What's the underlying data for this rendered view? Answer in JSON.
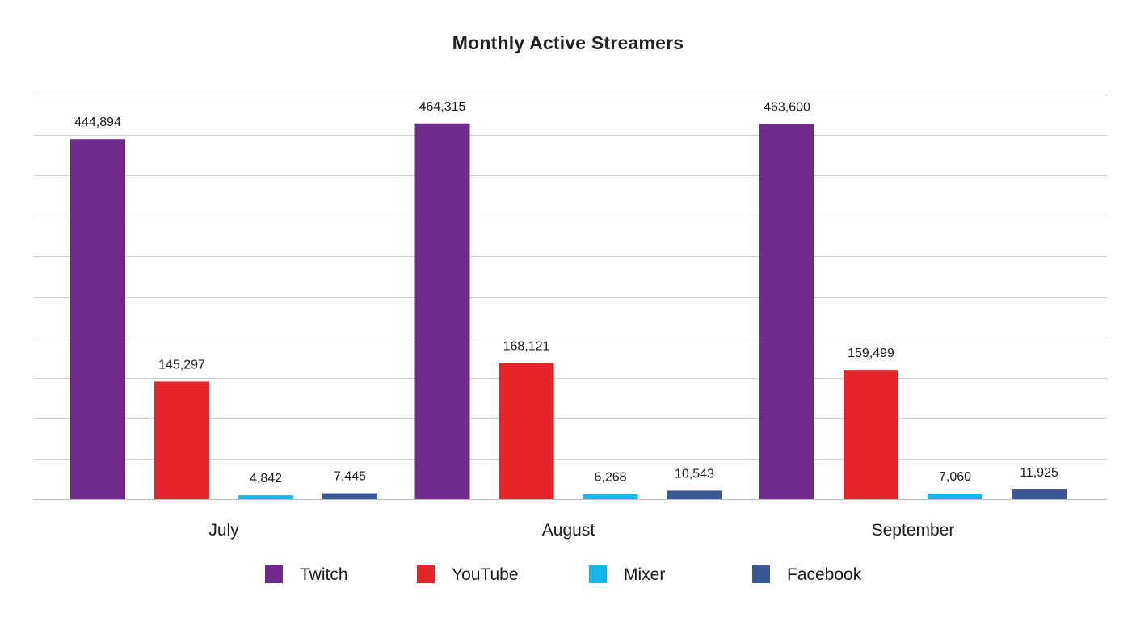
{
  "chart_data": {
    "type": "bar",
    "title": "Monthly Active Streamers",
    "xlabel": "",
    "ylabel": "",
    "categories": [
      "July",
      "August",
      "September"
    ],
    "series": [
      {
        "name": "Twitch",
        "color": "#6f2a8c",
        "values": [
          444894,
          464315,
          463600
        ],
        "labels": [
          "444,894",
          "464,315",
          "463,600"
        ]
      },
      {
        "name": "YouTube",
        "color": "#e52329",
        "values": [
          145297,
          168121,
          159499
        ],
        "labels": [
          "145,297",
          "168,121",
          "159,499"
        ]
      },
      {
        "name": "Mixer",
        "color": "#14b8ea",
        "values": [
          4842,
          6268,
          7060
        ],
        "labels": [
          "4,842",
          "6,268",
          "7,060"
        ]
      },
      {
        "name": "Facebook",
        "color": "#3a5896",
        "values": [
          7445,
          10543,
          11925
        ],
        "labels": [
          "7,445",
          "10,543",
          "11,925"
        ]
      }
    ],
    "ylim": [
      0,
      500000
    ],
    "grid": true,
    "legend": "bottom-center"
  }
}
